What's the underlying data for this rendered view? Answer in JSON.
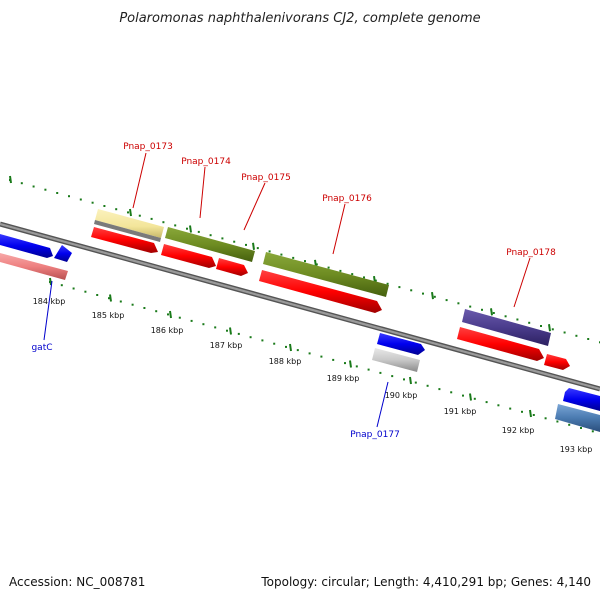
{
  "title": "Polaromonas naphthalenivorans CJ2, complete genome",
  "footer": {
    "accession": "Accession: NC_008781",
    "stats": "Topology: circular; Length: 4,410,291 bp; Genes: 4,140"
  },
  "ticks": [
    "184 kbp",
    "185 kbp",
    "186 kbp",
    "187 kbp",
    "188 kbp",
    "189 kbp",
    "190 kbp",
    "191 kbp",
    "192 kbp",
    "193 kbp"
  ],
  "gene_labels": {
    "pnap_0173": "Pnap_0173",
    "pnap_0174": "Pnap_0174",
    "pnap_0175": "Pnap_0175",
    "pnap_0176": "Pnap_0176",
    "pnap_0178": "Pnap_0178",
    "gatc": "gatC",
    "pnap_0177": "Pnap_0177"
  },
  "colors": {
    "backbone": "#7a7a7a",
    "tick": "#1a7a1a",
    "cds": "#ff0000",
    "yellow": "#f3e59a",
    "olive": "#6e8c22",
    "purple": "#4a3c8c",
    "blue": "#0000ee",
    "pink": "#ee8080",
    "gray": "#c8c8c8",
    "steel": "#4a7ab0",
    "label_red": "#cc0000",
    "label_blue": "#0000cc"
  }
}
